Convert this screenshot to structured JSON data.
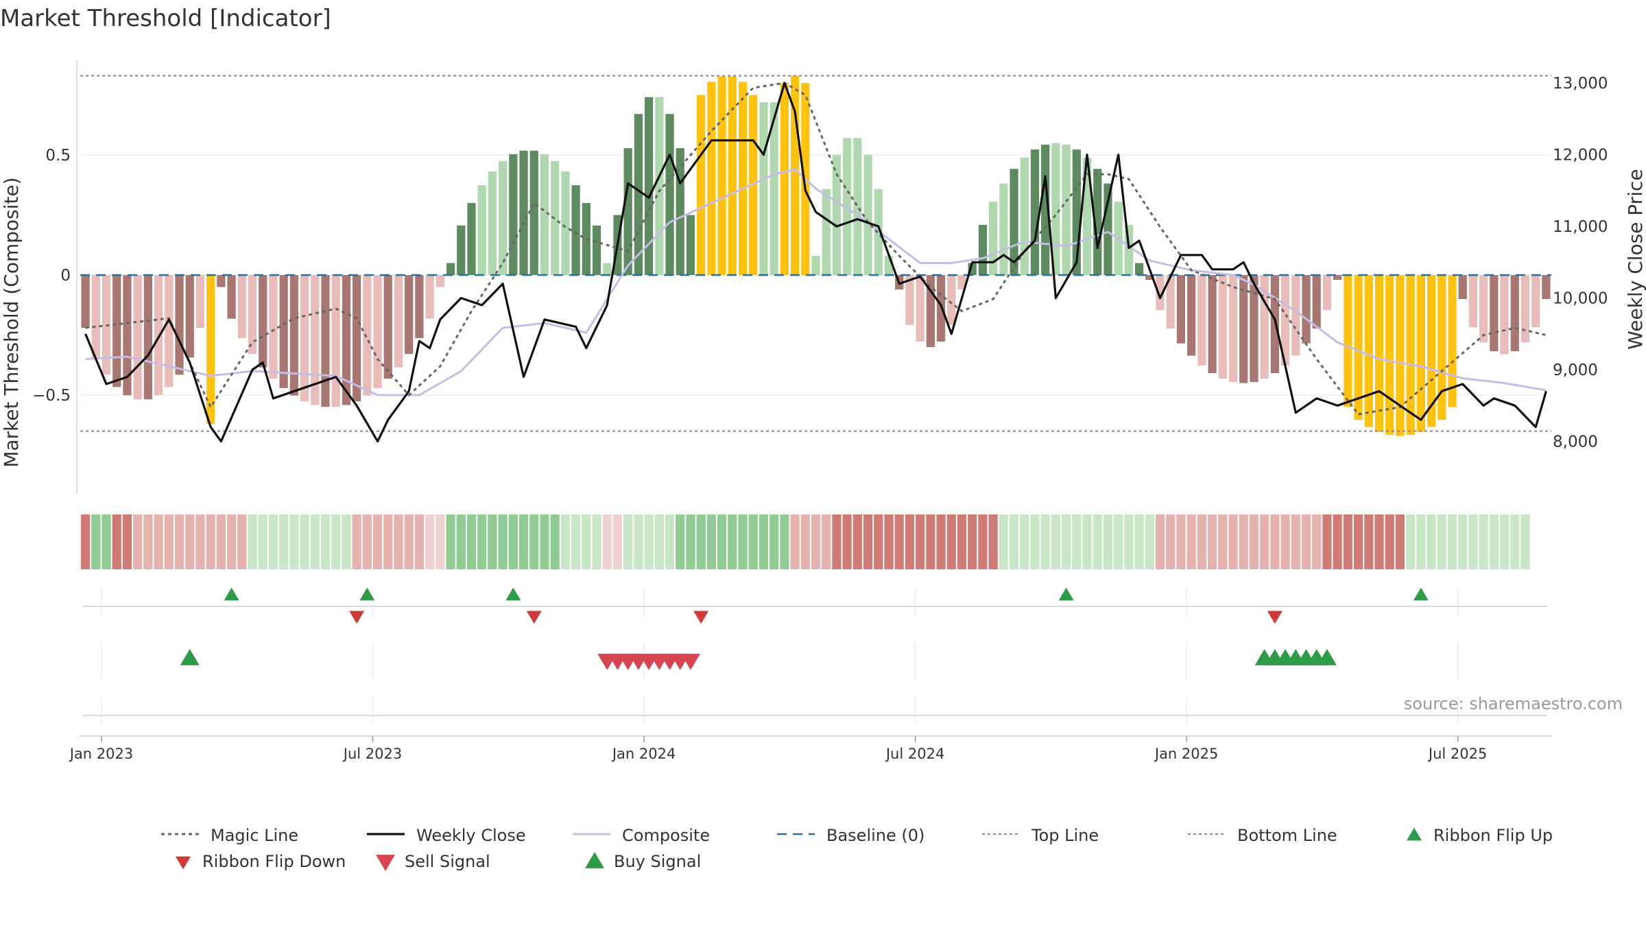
{
  "title": "Market Threshold [Indicator]",
  "source": "source: sharemaestro.com",
  "colors": {
    "magic": "#666666",
    "close": "#111111",
    "composite": "#c5bde6",
    "baseline": "#2a6f97",
    "refline": "#888888",
    "strong_up": "#5d8a5f",
    "weak_up": "#b0d8ae",
    "strong_down": "#a87772",
    "weak_down": "#e8bcb8",
    "extreme": "#ffc20e",
    "signal_up": "#2e9b48",
    "signal_down": "#d23a3a"
  },
  "chart_data": {
    "type": "bar",
    "x_axis": {
      "ticks": [
        "Jan 2023",
        "Jul 2023",
        "Jan 2024",
        "Jul 2024",
        "Jan 2025",
        "Jul 2025"
      ],
      "tick_weeks": [
        0,
        26,
        52,
        78,
        104,
        130
      ],
      "n_weeks": 141
    },
    "y_left": {
      "label": "Market Threshold (Composite)",
      "ticks": [
        0.5,
        0,
        -0.5
      ],
      "tick_labels": [
        "0.5",
        "0",
        "−0.5"
      ],
      "range": [
        -0.92,
        0.92
      ]
    },
    "y_right": {
      "label": "Weekly Close Price",
      "ticks": [
        13000,
        12000,
        11000,
        10000,
        9000,
        8000
      ],
      "tick_labels": [
        "13,000",
        "12,000",
        "11,000",
        "10,000",
        "9,000",
        "8,000"
      ],
      "range": [
        7350,
        13650
      ]
    },
    "top_line": 0.83,
    "bottom_line": -0.65,
    "segments": [
      {
        "start": 0,
        "end": 11,
        "min": -0.22,
        "peak": -0.52,
        "cycle": [
          2,
          3,
          3,
          2,
          2,
          3
        ],
        "strong": [
          1,
          2,
          3
        ]
      },
      {
        "start": 12,
        "end": 12,
        "min": -0.62,
        "peak": -0.62,
        "cycle": [
          4
        ],
        "strong": []
      },
      {
        "start": 13,
        "end": 34,
        "min": -0.05,
        "peak": -0.55,
        "cycle": [
          2,
          2,
          3,
          3,
          2,
          3
        ],
        "strong": [
          1,
          2,
          3
        ]
      },
      {
        "start": 35,
        "end": 50,
        "min": 0.05,
        "peak": 0.52,
        "cycle": [
          0,
          0,
          0,
          1,
          1,
          1
        ],
        "strong": [
          0
        ]
      },
      {
        "start": 51,
        "end": 58,
        "min": 0.25,
        "peak": 0.75,
        "cycle": [
          0,
          0,
          0,
          0,
          1
        ],
        "strong": [
          0
        ]
      },
      {
        "start": 59,
        "end": 64,
        "min": 0.75,
        "peak": 0.83,
        "cycle": [
          4
        ],
        "strong": []
      },
      {
        "start": 65,
        "end": 66,
        "min": 0.72,
        "peak": 0.77,
        "cycle": [
          1
        ],
        "strong": []
      },
      {
        "start": 67,
        "end": 69,
        "min": 0.8,
        "peak": 0.83,
        "cycle": [
          4
        ],
        "strong": []
      },
      {
        "start": 70,
        "end": 77,
        "min": 0.08,
        "peak": 0.58,
        "cycle": [
          1
        ],
        "strong": []
      },
      {
        "start": 78,
        "end": 84,
        "min": -0.06,
        "peak": -0.3,
        "cycle": [
          2,
          3,
          3,
          2
        ],
        "strong": [
          1,
          2
        ]
      },
      {
        "start": 85,
        "end": 101,
        "min": 0.05,
        "peak": 0.55,
        "cycle": [
          0,
          0,
          1,
          1,
          0,
          1
        ],
        "strong": [
          0
        ]
      },
      {
        "start": 102,
        "end": 120,
        "min": -0.02,
        "peak": -0.45,
        "cycle": [
          2,
          3,
          3,
          2,
          2,
          3
        ],
        "strong": [
          1,
          2
        ]
      },
      {
        "start": 121,
        "end": 131,
        "min": -0.55,
        "peak": -0.67,
        "cycle": [
          4
        ],
        "strong": []
      },
      {
        "start": 132,
        "end": 140,
        "min": -0.1,
        "peak": -0.33,
        "cycle": [
          2,
          3,
          3,
          2,
          3
        ],
        "strong": [
          1,
          2
        ]
      }
    ],
    "weekly_close_points": [
      [
        0,
        9500
      ],
      [
        2,
        8800
      ],
      [
        4,
        8900
      ],
      [
        6,
        9200
      ],
      [
        8,
        9700
      ],
      [
        10,
        9100
      ],
      [
        12,
        8200
      ],
      [
        13,
        8000
      ],
      [
        16,
        9000
      ],
      [
        17,
        9100
      ],
      [
        18,
        8600
      ],
      [
        20,
        8700
      ],
      [
        24,
        8900
      ],
      [
        26,
        8500
      ],
      [
        28,
        8000
      ],
      [
        29,
        8300
      ],
      [
        31,
        8700
      ],
      [
        32,
        9400
      ],
      [
        33,
        9300
      ],
      [
        34,
        9700
      ],
      [
        36,
        10000
      ],
      [
        38,
        9900
      ],
      [
        40,
        10200
      ],
      [
        42,
        8900
      ],
      [
        44,
        9700
      ],
      [
        47,
        9600
      ],
      [
        48,
        9300
      ],
      [
        50,
        9900
      ],
      [
        52,
        11600
      ],
      [
        54,
        11400
      ],
      [
        56,
        12000
      ],
      [
        57,
        11600
      ],
      [
        60,
        12200
      ],
      [
        64,
        12200
      ],
      [
        65,
        12000
      ],
      [
        66,
        12500
      ],
      [
        67,
        13000
      ],
      [
        68,
        12600
      ],
      [
        69,
        11500
      ],
      [
        70,
        11200
      ],
      [
        72,
        11000
      ],
      [
        74,
        11100
      ],
      [
        76,
        11000
      ],
      [
        78,
        10200
      ],
      [
        80,
        10300
      ],
      [
        82,
        9900
      ],
      [
        83,
        9500
      ],
      [
        85,
        10500
      ],
      [
        87,
        10500
      ],
      [
        88,
        10600
      ],
      [
        89,
        10500
      ],
      [
        91,
        10800
      ],
      [
        92,
        11700
      ],
      [
        93,
        10000
      ],
      [
        95,
        10500
      ],
      [
        96,
        12000
      ],
      [
        97,
        10700
      ],
      [
        99,
        12000
      ],
      [
        100,
        10700
      ],
      [
        101,
        10800
      ],
      [
        102,
        10400
      ],
      [
        103,
        10000
      ],
      [
        105,
        10600
      ],
      [
        107,
        10600
      ],
      [
        108,
        10400
      ],
      [
        110,
        10400
      ],
      [
        111,
        10500
      ],
      [
        112,
        10200
      ],
      [
        114,
        9700
      ],
      [
        116,
        8400
      ],
      [
        118,
        8600
      ],
      [
        120,
        8500
      ],
      [
        122,
        8600
      ],
      [
        124,
        8700
      ],
      [
        126,
        8500
      ],
      [
        128,
        8300
      ],
      [
        130,
        8700
      ],
      [
        132,
        8800
      ],
      [
        134,
        8500
      ],
      [
        135,
        8600
      ],
      [
        137,
        8500
      ],
      [
        139,
        8200
      ],
      [
        140,
        8700
      ]
    ],
    "magic_line_points": [
      [
        0,
        -0.22
      ],
      [
        4,
        -0.2
      ],
      [
        8,
        -0.18
      ],
      [
        12,
        -0.55
      ],
      [
        16,
        -0.28
      ],
      [
        20,
        -0.18
      ],
      [
        24,
        -0.14
      ],
      [
        26,
        -0.18
      ],
      [
        28,
        -0.35
      ],
      [
        31,
        -0.5
      ],
      [
        34,
        -0.38
      ],
      [
        37,
        -0.15
      ],
      [
        40,
        0.05
      ],
      [
        43,
        0.3
      ],
      [
        46,
        0.2
      ],
      [
        48,
        0.15
      ],
      [
        52,
        0.1
      ],
      [
        55,
        0.35
      ],
      [
        60,
        0.6
      ],
      [
        64,
        0.78
      ],
      [
        67,
        0.8
      ],
      [
        69,
        0.75
      ],
      [
        72,
        0.42
      ],
      [
        75,
        0.22
      ],
      [
        78,
        0.08
      ],
      [
        81,
        -0.05
      ],
      [
        84,
        -0.15
      ],
      [
        87,
        -0.1
      ],
      [
        90,
        0.1
      ],
      [
        93,
        0.25
      ],
      [
        96,
        0.42
      ],
      [
        98,
        0.42
      ],
      [
        100,
        0.4
      ],
      [
        103,
        0.2
      ],
      [
        106,
        0.02
      ],
      [
        110,
        -0.05
      ],
      [
        114,
        -0.1
      ],
      [
        118,
        -0.35
      ],
      [
        122,
        -0.58
      ],
      [
        126,
        -0.55
      ],
      [
        130,
        -0.4
      ],
      [
        134,
        -0.25
      ],
      [
        137,
        -0.22
      ],
      [
        140,
        -0.25
      ]
    ],
    "composite_points": [
      [
        0,
        -0.35
      ],
      [
        4,
        -0.34
      ],
      [
        8,
        -0.38
      ],
      [
        12,
        -0.42
      ],
      [
        16,
        -0.4
      ],
      [
        20,
        -0.41
      ],
      [
        24,
        -0.42
      ],
      [
        28,
        -0.5
      ],
      [
        32,
        -0.5
      ],
      [
        36,
        -0.4
      ],
      [
        40,
        -0.22
      ],
      [
        44,
        -0.2
      ],
      [
        48,
        -0.24
      ],
      [
        52,
        0.04
      ],
      [
        56,
        0.22
      ],
      [
        60,
        0.3
      ],
      [
        64,
        0.38
      ],
      [
        66,
        0.42
      ],
      [
        68,
        0.44
      ],
      [
        70,
        0.36
      ],
      [
        74,
        0.25
      ],
      [
        77,
        0.15
      ],
      [
        80,
        0.05
      ],
      [
        83,
        0.05
      ],
      [
        86,
        0.07
      ],
      [
        90,
        0.14
      ],
      [
        94,
        0.12
      ],
      [
        98,
        0.18
      ],
      [
        102,
        0.06
      ],
      [
        106,
        0.02
      ],
      [
        110,
        0.0
      ],
      [
        112,
        -0.04
      ],
      [
        116,
        -0.15
      ],
      [
        120,
        -0.28
      ],
      [
        124,
        -0.35
      ],
      [
        128,
        -0.38
      ],
      [
        132,
        -0.43
      ],
      [
        136,
        -0.45
      ],
      [
        140,
        -0.48
      ]
    ],
    "ribbon_levels": [
      2,
      3,
      3,
      2,
      2,
      1,
      1,
      1,
      1,
      1,
      1,
      1,
      1,
      1,
      1,
      1,
      -1,
      -1,
      -1,
      -1,
      -1,
      -1,
      -1,
      -1,
      -1,
      -1,
      1,
      1,
      1,
      1,
      1,
      1,
      1,
      0,
      0,
      -2,
      -2,
      -2,
      -2,
      -2,
      -2,
      -2,
      -2,
      -2,
      -2,
      -2,
      -1,
      -1,
      -1,
      -1,
      0,
      0,
      -1,
      -1,
      -1,
      -1,
      -1,
      -2,
      -2,
      -2,
      -2,
      -2,
      -2,
      -2,
      -2,
      -2,
      -2,
      -2,
      1,
      1,
      1,
      1,
      2,
      2,
      2,
      2,
      2,
      2,
      2,
      2,
      2,
      2,
      2,
      2,
      2,
      2,
      2,
      2,
      -1,
      -1,
      -1,
      -1,
      -1,
      -1,
      -1,
      -1,
      -1,
      -1,
      -1,
      -1,
      -1,
      -1,
      -1,
      1,
      1,
      1,
      1,
      1,
      1,
      1,
      1,
      1,
      1,
      1,
      1,
      1,
      1,
      1,
      1,
      2,
      2,
      2,
      2,
      2,
      2,
      2,
      2,
      -1,
      -1,
      -1,
      -1,
      -1,
      -1,
      -1,
      -1,
      -1,
      -1,
      -1,
      -1
    ],
    "ribbon_flip_up": [
      14,
      27,
      41,
      94,
      128
    ],
    "ribbon_flip_down": [
      26,
      43,
      59,
      114
    ],
    "buy_signal": [
      10,
      113,
      114,
      115,
      116,
      117,
      118,
      119
    ],
    "sell_signal": [
      50,
      51,
      52,
      53,
      54,
      55,
      56,
      57,
      58
    ],
    "legend": [
      {
        "key": "magic",
        "label": "Magic Line"
      },
      {
        "key": "close",
        "label": "Weekly Close"
      },
      {
        "key": "composite",
        "label": "Composite"
      },
      {
        "key": "baseline",
        "label": "Baseline (0)"
      },
      {
        "key": "top",
        "label": "Top Line"
      },
      {
        "key": "bottom",
        "label": "Bottom Line"
      },
      {
        "key": "flip_up",
        "label": "Ribbon Flip Up"
      },
      {
        "key": "flip_down",
        "label": "Ribbon Flip Down"
      },
      {
        "key": "sell",
        "label": "Sell Signal"
      },
      {
        "key": "buy",
        "label": "Buy Signal"
      }
    ]
  }
}
